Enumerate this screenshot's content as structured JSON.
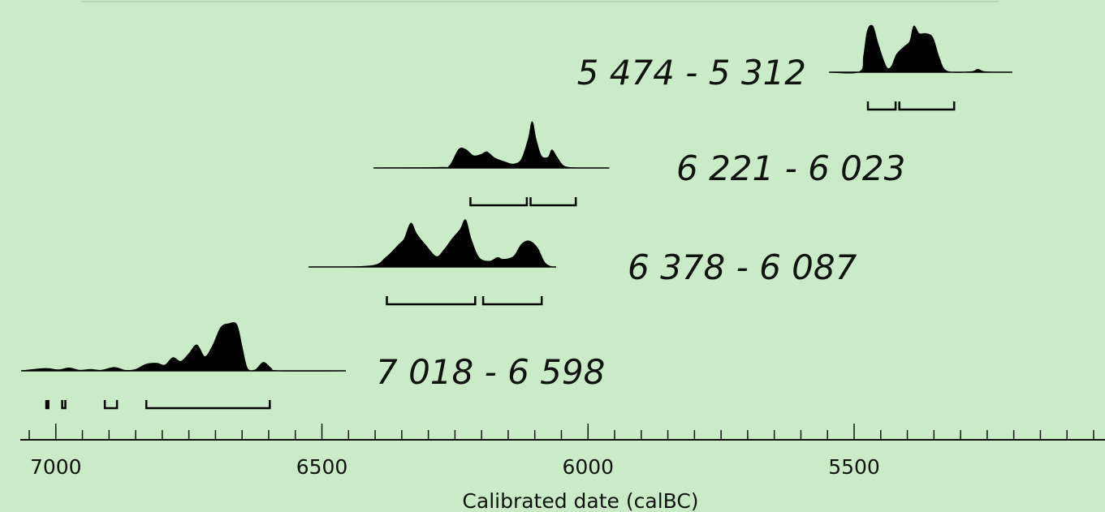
{
  "chart_data": {
    "type": "area",
    "xlabel": "Calibrated date (calBC)",
    "x_axis": {
      "range": [
        7050,
        4550
      ],
      "reversed": true,
      "major_ticks": [
        7000,
        6500,
        6000,
        5500
      ],
      "minor_tick_step": 50
    },
    "colors": {
      "background": "#c9ecc7",
      "ink": "#000000",
      "top_line": "#b5d9b3"
    },
    "grid": false,
    "series": [
      {
        "label": "7 018 - 6 598",
        "span": [
          7065,
          6455
        ],
        "curve": [
          [
            7065,
            0
          ],
          [
            7020,
            0.05
          ],
          [
            6995,
            0.02
          ],
          [
            6975,
            0.06
          ],
          [
            6955,
            0.01
          ],
          [
            6935,
            0.03
          ],
          [
            6915,
            0.01
          ],
          [
            6890,
            0.07
          ],
          [
            6870,
            0.01
          ],
          [
            6850,
            0.03
          ],
          [
            6830,
            0.14
          ],
          [
            6810,
            0.16
          ],
          [
            6795,
            0.12
          ],
          [
            6780,
            0.28
          ],
          [
            6765,
            0.2
          ],
          [
            6750,
            0.36
          ],
          [
            6735,
            0.55
          ],
          [
            6720,
            0.3
          ],
          [
            6705,
            0.54
          ],
          [
            6690,
            0.92
          ],
          [
            6675,
            1.0
          ],
          [
            6660,
            0.98
          ],
          [
            6650,
            0.5
          ],
          [
            6640,
            0.05
          ],
          [
            6625,
            0.02
          ],
          [
            6610,
            0.18
          ],
          [
            6595,
            0.05
          ],
          [
            6580,
            0
          ],
          [
            6455,
            0
          ]
        ],
        "hpd_ranges": [
          [
            7018,
            7014
          ],
          [
            6988,
            6982
          ],
          [
            6908,
            6885
          ],
          [
            6830,
            6598
          ]
        ]
      },
      {
        "label": "6 378 - 6 087",
        "span": [
          6525,
          6060
        ],
        "curve": [
          [
            6525,
            0
          ],
          [
            6410,
            0.02
          ],
          [
            6380,
            0.2
          ],
          [
            6355,
            0.48
          ],
          [
            6345,
            0.6
          ],
          [
            6333,
            0.93
          ],
          [
            6322,
            0.7
          ],
          [
            6305,
            0.46
          ],
          [
            6285,
            0.22
          ],
          [
            6270,
            0.37
          ],
          [
            6255,
            0.6
          ],
          [
            6240,
            0.8
          ],
          [
            6230,
            1.0
          ],
          [
            6220,
            0.6
          ],
          [
            6205,
            0.2
          ],
          [
            6185,
            0.12
          ],
          [
            6170,
            0.2
          ],
          [
            6160,
            0.16
          ],
          [
            6140,
            0.22
          ],
          [
            6125,
            0.48
          ],
          [
            6110,
            0.55
          ],
          [
            6095,
            0.4
          ],
          [
            6082,
            0.1
          ],
          [
            6070,
            0.01
          ],
          [
            6060,
            0
          ]
        ],
        "hpd_ranges": [
          [
            6378,
            6212
          ],
          [
            6197,
            6087
          ]
        ]
      },
      {
        "label": "6 221 - 6 023",
        "span": [
          6403,
          5960
        ],
        "curve": [
          [
            6403,
            0
          ],
          [
            6280,
            0.01
          ],
          [
            6260,
            0.05
          ],
          [
            6243,
            0.38
          ],
          [
            6230,
            0.38
          ],
          [
            6215,
            0.25
          ],
          [
            6200,
            0.28
          ],
          [
            6190,
            0.33
          ],
          [
            6175,
            0.2
          ],
          [
            6155,
            0.12
          ],
          [
            6140,
            0.08
          ],
          [
            6125,
            0.18
          ],
          [
            6112,
            0.6
          ],
          [
            6105,
            0.95
          ],
          [
            6098,
            0.6
          ],
          [
            6088,
            0.25
          ],
          [
            6075,
            0.22
          ],
          [
            6068,
            0.37
          ],
          [
            6060,
            0.25
          ],
          [
            6048,
            0.06
          ],
          [
            6035,
            0.01
          ],
          [
            6010,
            0
          ],
          [
            5960,
            0
          ]
        ],
        "hpd_ranges": [
          [
            6221,
            6115
          ],
          [
            6108,
            6023
          ]
        ]
      },
      {
        "label": "5 474 - 5 312",
        "span": [
          5547,
          5203
        ],
        "curve": [
          [
            5547,
            0
          ],
          [
            5490,
            0.01
          ],
          [
            5482,
            0.35
          ],
          [
            5475,
            0.88
          ],
          [
            5465,
            0.98
          ],
          [
            5455,
            0.6
          ],
          [
            5440,
            0.12
          ],
          [
            5430,
            0.12
          ],
          [
            5420,
            0.38
          ],
          [
            5405,
            0.55
          ],
          [
            5395,
            0.66
          ],
          [
            5388,
            0.98
          ],
          [
            5378,
            0.82
          ],
          [
            5365,
            0.82
          ],
          [
            5352,
            0.73
          ],
          [
            5340,
            0.3
          ],
          [
            5325,
            0.02
          ],
          [
            5280,
            0.01
          ],
          [
            5268,
            0.06
          ],
          [
            5255,
            0.01
          ],
          [
            5230,
            0
          ],
          [
            5203,
            0
          ]
        ],
        "hpd_ranges": [
          [
            5474,
            5422
          ],
          [
            5415,
            5312
          ]
        ]
      }
    ]
  }
}
